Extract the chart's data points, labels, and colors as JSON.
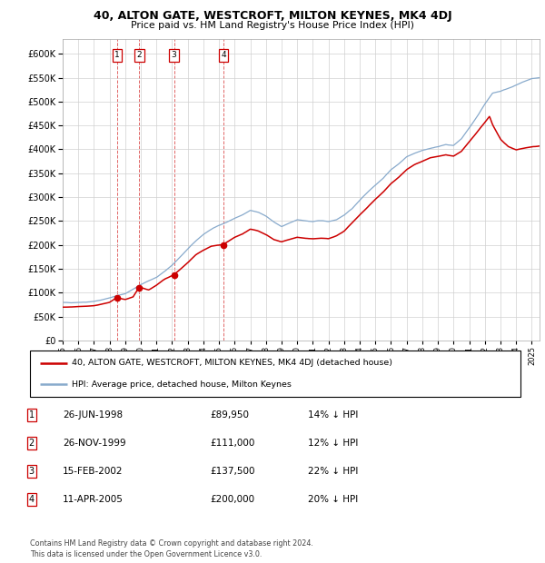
{
  "title": "40, ALTON GATE, WESTCROFT, MILTON KEYNES, MK4 4DJ",
  "subtitle": "Price paid vs. HM Land Registry's House Price Index (HPI)",
  "background_color": "#ffffff",
  "plot_bg_color": "#ffffff",
  "grid_color": "#d0d0d0",
  "sale_dates": [
    1998.49,
    1999.9,
    2002.12,
    2005.28
  ],
  "sale_prices": [
    89950,
    111000,
    137500,
    200000
  ],
  "sale_labels": [
    "1",
    "2",
    "3",
    "4"
  ],
  "legend_line1": "40, ALTON GATE, WESTCROFT, MILTON KEYNES, MK4 4DJ (detached house)",
  "legend_line2": "HPI: Average price, detached house, Milton Keynes",
  "table_rows": [
    [
      "1",
      "26-JUN-1998",
      "£89,950",
      "14% ↓ HPI"
    ],
    [
      "2",
      "26-NOV-1999",
      "£111,000",
      "12% ↓ HPI"
    ],
    [
      "3",
      "15-FEB-2002",
      "£137,500",
      "22% ↓ HPI"
    ],
    [
      "4",
      "11-APR-2005",
      "£200,000",
      "20% ↓ HPI"
    ]
  ],
  "footnote": "Contains HM Land Registry data © Crown copyright and database right 2024.\nThis data is licensed under the Open Government Licence v3.0.",
  "red_color": "#cc0000",
  "blue_color": "#88aacc",
  "ylim": [
    0,
    630000
  ],
  "yticks": [
    0,
    50000,
    100000,
    150000,
    200000,
    250000,
    300000,
    350000,
    400000,
    450000,
    500000,
    550000,
    600000
  ],
  "xmin": 1995.0,
  "xmax": 2025.5,
  "hpi_anchors": [
    [
      1995.0,
      80000
    ],
    [
      1995.5,
      79000
    ],
    [
      1996.0,
      80500
    ],
    [
      1996.5,
      81000
    ],
    [
      1997.0,
      83000
    ],
    [
      1997.5,
      86000
    ],
    [
      1998.0,
      90000
    ],
    [
      1998.5,
      95000
    ],
    [
      1999.0,
      99000
    ],
    [
      1999.5,
      108000
    ],
    [
      2000.0,
      118000
    ],
    [
      2000.5,
      126000
    ],
    [
      2001.0,
      133000
    ],
    [
      2001.5,
      145000
    ],
    [
      2002.0,
      158000
    ],
    [
      2002.5,
      175000
    ],
    [
      2003.0,
      192000
    ],
    [
      2003.5,
      208000
    ],
    [
      2004.0,
      222000
    ],
    [
      2004.5,
      233000
    ],
    [
      2005.0,
      241000
    ],
    [
      2005.5,
      248000
    ],
    [
      2006.0,
      256000
    ],
    [
      2006.5,
      263000
    ],
    [
      2007.0,
      272000
    ],
    [
      2007.5,
      268000
    ],
    [
      2008.0,
      260000
    ],
    [
      2008.5,
      248000
    ],
    [
      2009.0,
      238000
    ],
    [
      2009.5,
      245000
    ],
    [
      2010.0,
      252000
    ],
    [
      2010.5,
      250000
    ],
    [
      2011.0,
      248000
    ],
    [
      2011.5,
      250000
    ],
    [
      2012.0,
      248000
    ],
    [
      2012.5,
      252000
    ],
    [
      2013.0,
      262000
    ],
    [
      2013.5,
      275000
    ],
    [
      2014.0,
      293000
    ],
    [
      2014.5,
      310000
    ],
    [
      2015.0,
      325000
    ],
    [
      2015.5,
      340000
    ],
    [
      2016.0,
      358000
    ],
    [
      2016.5,
      370000
    ],
    [
      2017.0,
      385000
    ],
    [
      2017.5,
      392000
    ],
    [
      2018.0,
      398000
    ],
    [
      2018.5,
      402000
    ],
    [
      2019.0,
      405000
    ],
    [
      2019.5,
      410000
    ],
    [
      2020.0,
      408000
    ],
    [
      2020.5,
      422000
    ],
    [
      2021.0,
      445000
    ],
    [
      2021.5,
      468000
    ],
    [
      2022.0,
      495000
    ],
    [
      2022.5,
      518000
    ],
    [
      2023.0,
      522000
    ],
    [
      2023.5,
      528000
    ],
    [
      2024.0,
      535000
    ],
    [
      2024.5,
      542000
    ],
    [
      2025.0,
      548000
    ],
    [
      2025.5,
      550000
    ]
  ],
  "pp_anchors": [
    [
      1995.0,
      70000
    ],
    [
      1995.5,
      70500
    ],
    [
      1996.0,
      71000
    ],
    [
      1996.5,
      72000
    ],
    [
      1997.0,
      73000
    ],
    [
      1997.5,
      76000
    ],
    [
      1998.0,
      80000
    ],
    [
      1998.49,
      89950
    ],
    [
      1998.7,
      87000
    ],
    [
      1999.0,
      85000
    ],
    [
      1999.5,
      90000
    ],
    [
      1999.9,
      111000
    ],
    [
      2000.2,
      108000
    ],
    [
      2000.5,
      105000
    ],
    [
      2001.0,
      115000
    ],
    [
      2001.5,
      127000
    ],
    [
      2002.12,
      137500
    ],
    [
      2002.5,
      148000
    ],
    [
      2003.0,
      162000
    ],
    [
      2003.5,
      178000
    ],
    [
      2004.0,
      188000
    ],
    [
      2004.5,
      196000
    ],
    [
      2005.28,
      200000
    ],
    [
      2005.5,
      205000
    ],
    [
      2006.0,
      215000
    ],
    [
      2006.5,
      222000
    ],
    [
      2007.0,
      232000
    ],
    [
      2007.5,
      228000
    ],
    [
      2008.0,
      220000
    ],
    [
      2008.5,
      210000
    ],
    [
      2009.0,
      205000
    ],
    [
      2009.5,
      210000
    ],
    [
      2010.0,
      215000
    ],
    [
      2010.5,
      213000
    ],
    [
      2011.0,
      212000
    ],
    [
      2011.5,
      213000
    ],
    [
      2012.0,
      212000
    ],
    [
      2012.5,
      218000
    ],
    [
      2013.0,
      228000
    ],
    [
      2013.5,
      245000
    ],
    [
      2014.0,
      262000
    ],
    [
      2014.5,
      278000
    ],
    [
      2015.0,
      295000
    ],
    [
      2015.5,
      310000
    ],
    [
      2016.0,
      328000
    ],
    [
      2016.5,
      342000
    ],
    [
      2017.0,
      358000
    ],
    [
      2017.5,
      368000
    ],
    [
      2018.0,
      375000
    ],
    [
      2018.5,
      382000
    ],
    [
      2019.0,
      385000
    ],
    [
      2019.5,
      388000
    ],
    [
      2020.0,
      385000
    ],
    [
      2020.5,
      395000
    ],
    [
      2021.0,
      415000
    ],
    [
      2021.5,
      435000
    ],
    [
      2022.0,
      455000
    ],
    [
      2022.3,
      468000
    ],
    [
      2022.5,
      450000
    ],
    [
      2023.0,
      420000
    ],
    [
      2023.5,
      405000
    ],
    [
      2024.0,
      398000
    ],
    [
      2024.5,
      402000
    ],
    [
      2025.0,
      405000
    ],
    [
      2025.5,
      407000
    ]
  ]
}
